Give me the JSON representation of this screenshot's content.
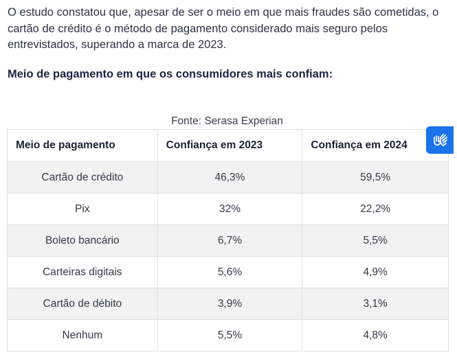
{
  "intro": {
    "text": "O estudo constatou que, apesar de ser o meio em que mais fraudes são cometidas, o cartão de crédito é o método de pagamento considerado mais seguro pelos entrevistados, superando a marca de 2023."
  },
  "subheading": "Meio de pagamento em que os consumidores mais confiam:",
  "table": {
    "source": "Fonte: Serasa Experian",
    "headers": [
      "Meio de pagamento",
      "Confiança em 2023",
      "Confiança em 2024"
    ],
    "rows": [
      [
        "Cartão de crédito",
        "46,3%",
        "59,5%"
      ],
      [
        "Pix",
        "32%",
        "22,2%"
      ],
      [
        "Boleto bancário",
        "6,7%",
        "5,5%"
      ],
      [
        "Carteiras digitais",
        "5,6%",
        "4,9%"
      ],
      [
        "Cartão de débito",
        "3,9%",
        "3,1%"
      ],
      [
        "Nenhum",
        "5,5%",
        "4,8%"
      ]
    ]
  },
  "accessibility_widget": {
    "icon": "sign-language-hands-icon",
    "color": "#1a73e8"
  }
}
